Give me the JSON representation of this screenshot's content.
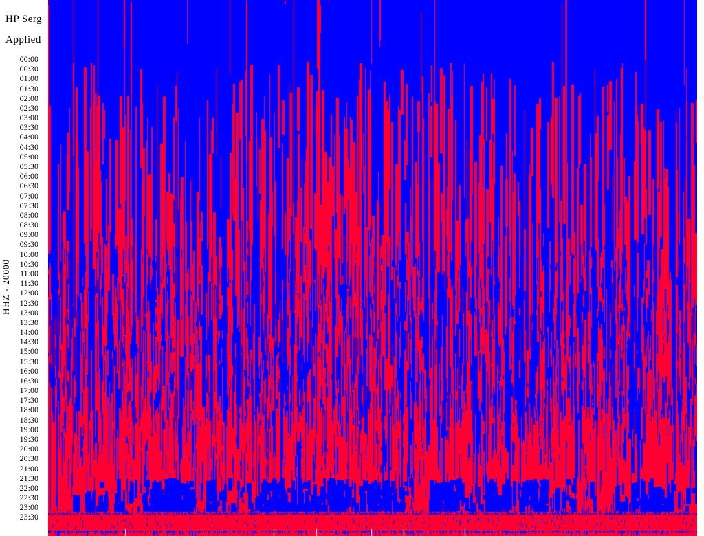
{
  "meta": {
    "title_line1": "HP Serg",
    "title_line2": "Applied"
  },
  "axis": {
    "channel_label": "HHZ - 20000"
  },
  "chart_data": {
    "type": "heatmap",
    "title": "HP Serg — Applied (24-hour helicorder day plot)",
    "xlabel": "",
    "ylabel": "HHZ - 20000",
    "rows": 48,
    "row_interval_minutes": 30,
    "categories": [
      "00:00",
      "00:30",
      "01:00",
      "01:30",
      "02:00",
      "02:30",
      "03:00",
      "03:30",
      "04:00",
      "04:30",
      "05:00",
      "05:30",
      "06:00",
      "06:30",
      "07:00",
      "07:30",
      "08:00",
      "08:30",
      "09:00",
      "09:30",
      "10:00",
      "10:30",
      "11:00",
      "11:30",
      "12:00",
      "12:30",
      "13:00",
      "13:30",
      "14:00",
      "14:30",
      "15:00",
      "15:30",
      "16:00",
      "16:30",
      "17:00",
      "17:30",
      "18:00",
      "18:30",
      "19:00",
      "19:30",
      "20:00",
      "20:30",
      "21:00",
      "21:30",
      "22:00",
      "22:30",
      "23:00",
      "23:30"
    ],
    "legend_position": "none",
    "grid": false,
    "description": "Continuously clipped seismic helicorder: 48 half-hour trace rows drawn in alternating red and blue saturate the full plot height, producing dense vertical red/blue stripes. Stripes fragment and fade into a red-dominated band near 20:00-23:00, and the final trace appears as an unclipped blue waveform band along the bottom edge.",
    "colors": {
      "trace_red": "#ff0033",
      "trace_blue": "#0000ff",
      "background": "#ffffff",
      "text": "#000000"
    },
    "pattern": {
      "seed": 20000,
      "long_stripes": 1150,
      "deep_stripes": 60,
      "red_cuts": 950,
      "mid_fragments": 2300,
      "red_wash": 1100,
      "clusters": 85,
      "core_ticks": 160,
      "top_ticks": 420,
      "white_gaps": 6,
      "blue_bands": [
        [
          0.01,
          4,
          0.95
        ],
        [
          0.064,
          8,
          0.93
        ],
        [
          0.095,
          5,
          0.66
        ],
        [
          0.13,
          3,
          0.5
        ],
        [
          0.172,
          10,
          0.93
        ],
        [
          0.203,
          6,
          0.5
        ],
        [
          0.25,
          8,
          0.74
        ],
        [
          0.287,
          5,
          0.8
        ],
        [
          0.326,
          5,
          0.4
        ],
        [
          0.37,
          4,
          0.85
        ],
        [
          0.396,
          6,
          0.69
        ],
        [
          0.455,
          12,
          0.98
        ],
        [
          0.47,
          4,
          0.6
        ],
        [
          0.503,
          6,
          0.93
        ],
        [
          0.527,
          8,
          0.6
        ],
        [
          0.561,
          5,
          0.46
        ],
        [
          0.604,
          6,
          0.79
        ],
        [
          0.64,
          12,
          0.99
        ],
        [
          0.67,
          4,
          0.55
        ],
        [
          0.725,
          6,
          0.64
        ],
        [
          0.773,
          5,
          0.4
        ],
        [
          0.806,
          4,
          0.72
        ],
        [
          0.839,
          10,
          0.99
        ],
        [
          0.87,
          4,
          0.55
        ],
        [
          0.902,
          8,
          0.98
        ],
        [
          0.94,
          4,
          0.6
        ],
        [
          0.985,
          8,
          0.93
        ]
      ]
    }
  }
}
